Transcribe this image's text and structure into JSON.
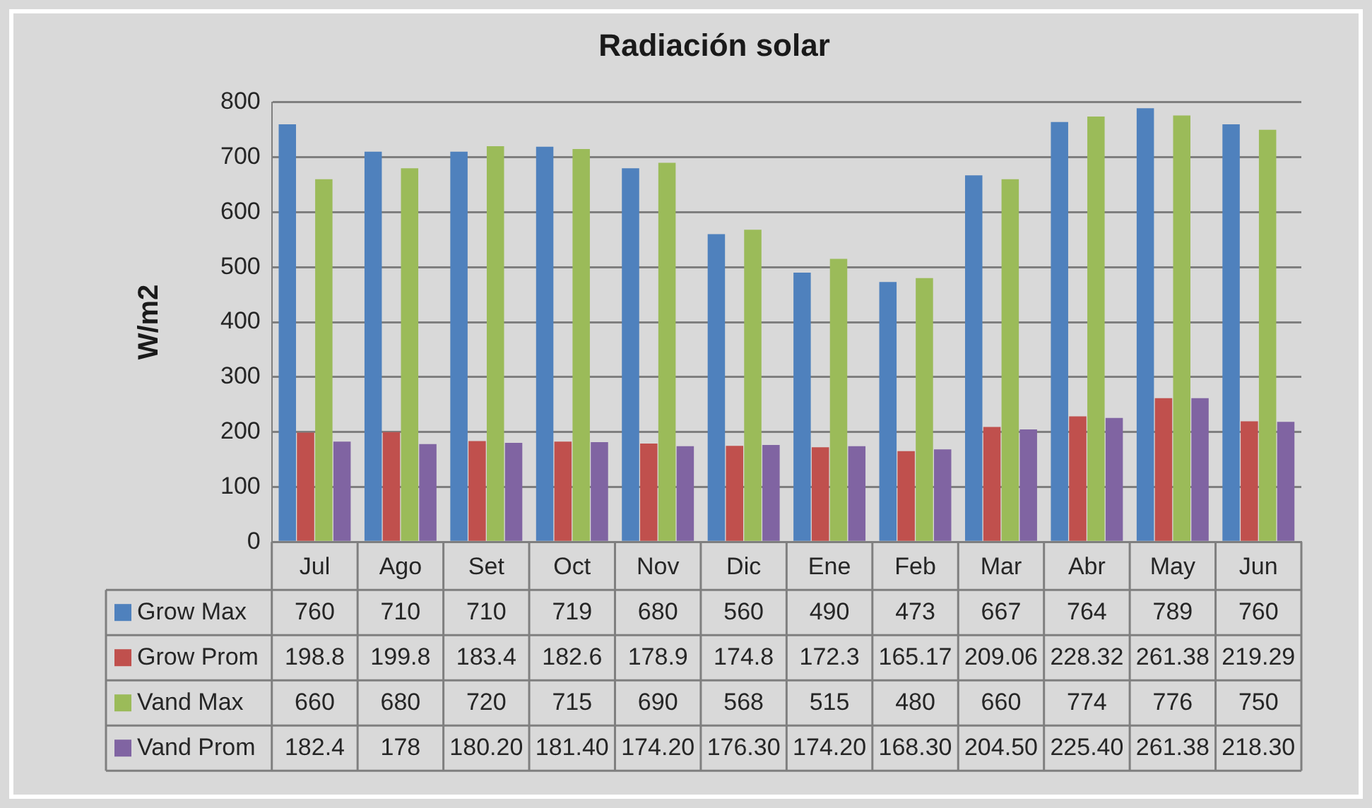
{
  "chart_data": {
    "type": "bar",
    "title": "Radiación solar",
    "ylabel": "W/m2",
    "categories": [
      "Jul",
      "Ago",
      "Set",
      "Oct",
      "Nov",
      "Dic",
      "Ene",
      "Feb",
      "Mar",
      "Abr",
      "May",
      "Jun"
    ],
    "series": [
      {
        "name": "Grow Max",
        "color": "#4f81bd",
        "values": [
          760,
          710,
          710,
          719,
          680,
          560,
          490,
          473,
          667,
          764,
          789,
          760
        ],
        "value_labels": [
          "760",
          "710",
          "710",
          "719",
          "680",
          "560",
          "490",
          "473",
          "667",
          "764",
          "789",
          "760"
        ]
      },
      {
        "name": "Grow Prom",
        "color": "#c0504d",
        "values": [
          198.8,
          199.8,
          183.4,
          182.6,
          178.9,
          174.8,
          172.3,
          165.17,
          209.06,
          228.32,
          261.38,
          219.29
        ],
        "value_labels": [
          "198.8",
          "199.8",
          "183.4",
          "182.6",
          "178.9",
          "174.8",
          "172.3",
          "165.17",
          "209.06",
          "228.32",
          "261.38",
          "219.29"
        ]
      },
      {
        "name": "Vand Max",
        "color": "#9bbb59",
        "values": [
          660,
          680,
          720,
          715,
          690,
          568,
          515,
          480,
          660,
          774,
          776,
          750
        ],
        "value_labels": [
          "660",
          "680",
          "720",
          "715",
          "690",
          "568",
          "515",
          "480",
          "660",
          "774",
          "776",
          "750"
        ]
      },
      {
        "name": "Vand Prom",
        "color": "#8064a2",
        "values": [
          182.4,
          178,
          180.2,
          181.4,
          174.2,
          176.3,
          174.2,
          168.3,
          204.5,
          225.4,
          261.38,
          218.3
        ],
        "value_labels": [
          "182.4",
          "178",
          "180.20",
          "181.40",
          "174.20",
          "176.30",
          "174.20",
          "168.30",
          "204.50",
          "225.40",
          "261.38",
          "218.30"
        ]
      }
    ],
    "ylim": [
      0,
      800
    ],
    "yticks": [
      0,
      100,
      200,
      300,
      400,
      500,
      600,
      700,
      800
    ],
    "grid": "y",
    "legend": "bottom"
  }
}
